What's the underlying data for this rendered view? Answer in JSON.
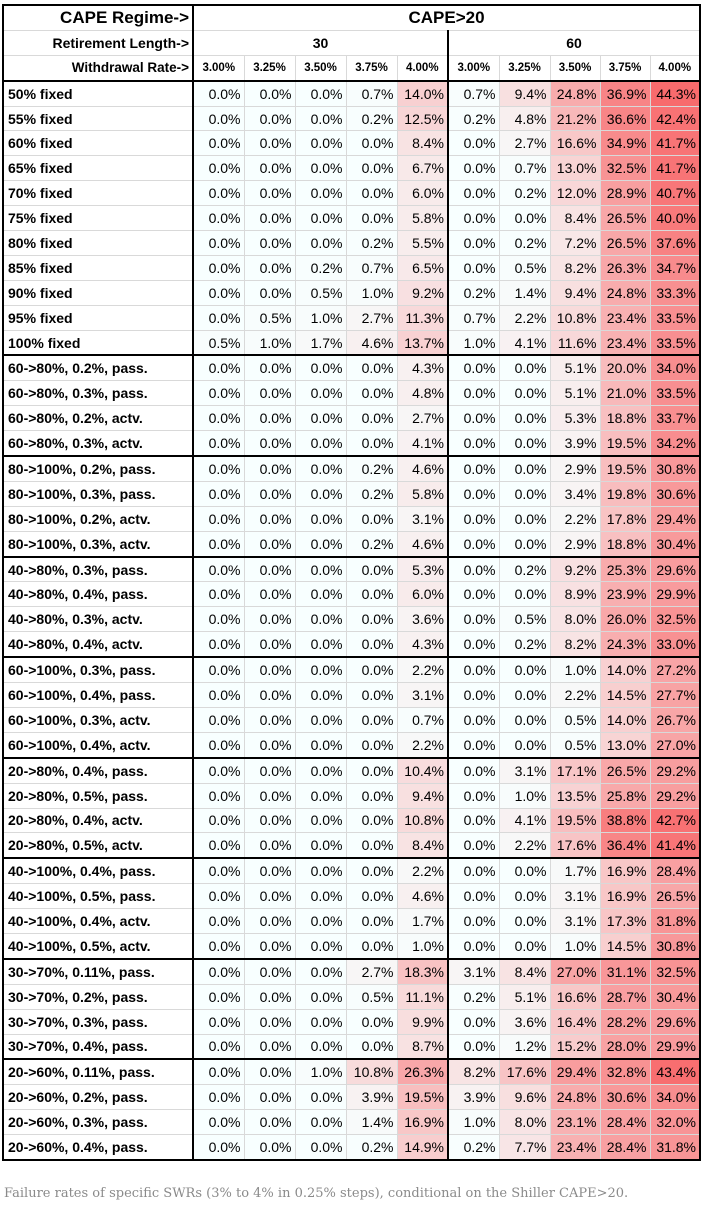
{
  "header": {
    "regime_label": "CAPE Regime->",
    "regime_value": "CAPE>20",
    "length_label": "Retirement Length->",
    "lengths": [
      "30",
      "60"
    ],
    "rate_label": "Withdrawal Rate->",
    "rates": [
      "3.00%",
      "3.25%",
      "3.50%",
      "3.75%",
      "4.00%"
    ]
  },
  "groups": [
    {
      "rows": [
        {
          "label": "50% fixed",
          "values": [
            "0.0%",
            "0.0%",
            "0.0%",
            "0.7%",
            "14.0%",
            "0.7%",
            "9.4%",
            "24.8%",
            "36.9%",
            "44.3%"
          ]
        },
        {
          "label": "55% fixed",
          "values": [
            "0.0%",
            "0.0%",
            "0.0%",
            "0.2%",
            "12.5%",
            "0.2%",
            "4.8%",
            "21.2%",
            "36.6%",
            "42.4%"
          ]
        },
        {
          "label": "60% fixed",
          "values": [
            "0.0%",
            "0.0%",
            "0.0%",
            "0.0%",
            "8.4%",
            "0.0%",
            "2.7%",
            "16.6%",
            "34.9%",
            "41.7%"
          ]
        },
        {
          "label": "65% fixed",
          "values": [
            "0.0%",
            "0.0%",
            "0.0%",
            "0.0%",
            "6.7%",
            "0.0%",
            "0.7%",
            "13.0%",
            "32.5%",
            "41.7%"
          ]
        },
        {
          "label": "70% fixed",
          "values": [
            "0.0%",
            "0.0%",
            "0.0%",
            "0.0%",
            "6.0%",
            "0.0%",
            "0.2%",
            "12.0%",
            "28.9%",
            "40.7%"
          ]
        },
        {
          "label": "75% fixed",
          "values": [
            "0.0%",
            "0.0%",
            "0.0%",
            "0.0%",
            "5.8%",
            "0.0%",
            "0.0%",
            "8.4%",
            "26.5%",
            "40.0%"
          ]
        },
        {
          "label": "80% fixed",
          "values": [
            "0.0%",
            "0.0%",
            "0.0%",
            "0.2%",
            "5.5%",
            "0.0%",
            "0.2%",
            "7.2%",
            "26.5%",
            "37.6%"
          ]
        },
        {
          "label": "85% fixed",
          "values": [
            "0.0%",
            "0.0%",
            "0.2%",
            "0.7%",
            "6.5%",
            "0.0%",
            "0.5%",
            "8.2%",
            "26.3%",
            "34.7%"
          ]
        },
        {
          "label": "90% fixed",
          "values": [
            "0.0%",
            "0.0%",
            "0.5%",
            "1.0%",
            "9.2%",
            "0.2%",
            "1.4%",
            "9.4%",
            "24.8%",
            "33.3%"
          ]
        },
        {
          "label": "95% fixed",
          "values": [
            "0.0%",
            "0.5%",
            "1.0%",
            "2.7%",
            "11.3%",
            "0.7%",
            "2.2%",
            "10.8%",
            "23.4%",
            "33.5%"
          ]
        },
        {
          "label": "100% fixed",
          "values": [
            "0.5%",
            "1.0%",
            "1.7%",
            "4.6%",
            "13.7%",
            "1.0%",
            "4.1%",
            "11.6%",
            "23.4%",
            "33.5%"
          ]
        }
      ]
    },
    {
      "rows": [
        {
          "label": "60->80%, 0.2%, pass.",
          "values": [
            "0.0%",
            "0.0%",
            "0.0%",
            "0.0%",
            "4.3%",
            "0.0%",
            "0.0%",
            "5.1%",
            "20.0%",
            "34.0%"
          ]
        },
        {
          "label": "60->80%, 0.3%, pass.",
          "values": [
            "0.0%",
            "0.0%",
            "0.0%",
            "0.0%",
            "4.8%",
            "0.0%",
            "0.0%",
            "5.1%",
            "21.0%",
            "33.5%"
          ]
        },
        {
          "label": "60->80%, 0.2%, actv.",
          "values": [
            "0.0%",
            "0.0%",
            "0.0%",
            "0.0%",
            "2.7%",
            "0.0%",
            "0.0%",
            "5.3%",
            "18.8%",
            "33.7%"
          ]
        },
        {
          "label": "60->80%, 0.3%, actv.",
          "values": [
            "0.0%",
            "0.0%",
            "0.0%",
            "0.0%",
            "4.1%",
            "0.0%",
            "0.0%",
            "3.9%",
            "19.5%",
            "34.2%"
          ]
        }
      ]
    },
    {
      "rows": [
        {
          "label": "80->100%, 0.2%, pass.",
          "values": [
            "0.0%",
            "0.0%",
            "0.0%",
            "0.2%",
            "4.6%",
            "0.0%",
            "0.0%",
            "2.9%",
            "19.5%",
            "30.8%"
          ]
        },
        {
          "label": "80->100%, 0.3%, pass.",
          "values": [
            "0.0%",
            "0.0%",
            "0.0%",
            "0.2%",
            "5.8%",
            "0.0%",
            "0.0%",
            "3.4%",
            "19.8%",
            "30.6%"
          ]
        },
        {
          "label": "80->100%, 0.2%, actv.",
          "values": [
            "0.0%",
            "0.0%",
            "0.0%",
            "0.0%",
            "3.1%",
            "0.0%",
            "0.0%",
            "2.2%",
            "17.8%",
            "29.4%"
          ]
        },
        {
          "label": "80->100%, 0.3%, actv.",
          "values": [
            "0.0%",
            "0.0%",
            "0.0%",
            "0.2%",
            "4.6%",
            "0.0%",
            "0.0%",
            "2.9%",
            "18.8%",
            "30.4%"
          ]
        }
      ]
    },
    {
      "rows": [
        {
          "label": "40->80%, 0.3%, pass.",
          "values": [
            "0.0%",
            "0.0%",
            "0.0%",
            "0.0%",
            "5.3%",
            "0.0%",
            "0.2%",
            "9.2%",
            "25.3%",
            "29.6%"
          ]
        },
        {
          "label": "40->80%, 0.4%, pass.",
          "values": [
            "0.0%",
            "0.0%",
            "0.0%",
            "0.0%",
            "6.0%",
            "0.0%",
            "0.0%",
            "8.9%",
            "23.9%",
            "29.9%"
          ]
        },
        {
          "label": "40->80%, 0.3%, actv.",
          "values": [
            "0.0%",
            "0.0%",
            "0.0%",
            "0.0%",
            "3.6%",
            "0.0%",
            "0.5%",
            "8.0%",
            "26.0%",
            "32.5%"
          ]
        },
        {
          "label": "40->80%, 0.4%, actv.",
          "values": [
            "0.0%",
            "0.0%",
            "0.0%",
            "0.0%",
            "4.3%",
            "0.0%",
            "0.2%",
            "8.2%",
            "24.3%",
            "33.0%"
          ]
        }
      ]
    },
    {
      "rows": [
        {
          "label": "60->100%, 0.3%, pass.",
          "values": [
            "0.0%",
            "0.0%",
            "0.0%",
            "0.0%",
            "2.2%",
            "0.0%",
            "0.0%",
            "1.0%",
            "14.0%",
            "27.2%"
          ]
        },
        {
          "label": "60->100%, 0.4%, pass.",
          "values": [
            "0.0%",
            "0.0%",
            "0.0%",
            "0.0%",
            "3.1%",
            "0.0%",
            "0.0%",
            "2.2%",
            "14.5%",
            "27.7%"
          ]
        },
        {
          "label": "60->100%, 0.3%, actv.",
          "values": [
            "0.0%",
            "0.0%",
            "0.0%",
            "0.0%",
            "0.7%",
            "0.0%",
            "0.0%",
            "0.5%",
            "14.0%",
            "26.7%"
          ]
        },
        {
          "label": "60->100%, 0.4%, actv.",
          "values": [
            "0.0%",
            "0.0%",
            "0.0%",
            "0.0%",
            "2.2%",
            "0.0%",
            "0.0%",
            "0.5%",
            "13.0%",
            "27.0%"
          ]
        }
      ]
    },
    {
      "rows": [
        {
          "label": "20->80%, 0.4%, pass.",
          "values": [
            "0.0%",
            "0.0%",
            "0.0%",
            "0.0%",
            "10.4%",
            "0.0%",
            "3.1%",
            "17.1%",
            "26.5%",
            "29.2%"
          ]
        },
        {
          "label": "20->80%, 0.5%, pass.",
          "values": [
            "0.0%",
            "0.0%",
            "0.0%",
            "0.0%",
            "9.4%",
            "0.0%",
            "1.0%",
            "13.5%",
            "25.8%",
            "29.2%"
          ]
        },
        {
          "label": "20->80%, 0.4%, actv.",
          "values": [
            "0.0%",
            "0.0%",
            "0.0%",
            "0.0%",
            "10.8%",
            "0.0%",
            "4.1%",
            "19.5%",
            "38.8%",
            "42.7%"
          ]
        },
        {
          "label": "20->80%, 0.5%, actv.",
          "values": [
            "0.0%",
            "0.0%",
            "0.0%",
            "0.0%",
            "8.4%",
            "0.0%",
            "2.2%",
            "17.6%",
            "36.4%",
            "41.4%"
          ]
        }
      ]
    },
    {
      "rows": [
        {
          "label": "40->100%, 0.4%, pass.",
          "values": [
            "0.0%",
            "0.0%",
            "0.0%",
            "0.0%",
            "2.2%",
            "0.0%",
            "0.0%",
            "1.7%",
            "16.9%",
            "28.4%"
          ]
        },
        {
          "label": "40->100%, 0.5%, pass.",
          "values": [
            "0.0%",
            "0.0%",
            "0.0%",
            "0.0%",
            "4.6%",
            "0.0%",
            "0.0%",
            "3.1%",
            "16.9%",
            "26.5%"
          ]
        },
        {
          "label": "40->100%, 0.4%, actv.",
          "values": [
            "0.0%",
            "0.0%",
            "0.0%",
            "0.0%",
            "1.7%",
            "0.0%",
            "0.0%",
            "3.1%",
            "17.3%",
            "31.8%"
          ]
        },
        {
          "label": "40->100%, 0.5%, actv.",
          "values": [
            "0.0%",
            "0.0%",
            "0.0%",
            "0.0%",
            "1.0%",
            "0.0%",
            "0.0%",
            "1.0%",
            "14.5%",
            "30.8%"
          ]
        }
      ]
    },
    {
      "rows": [
        {
          "label": "30->70%, 0.11%, pass.",
          "values": [
            "0.0%",
            "0.0%",
            "0.0%",
            "2.7%",
            "18.3%",
            "3.1%",
            "8.4%",
            "27.0%",
            "31.1%",
            "32.5%"
          ]
        },
        {
          "label": "30->70%, 0.2%, pass.",
          "values": [
            "0.0%",
            "0.0%",
            "0.0%",
            "0.5%",
            "11.1%",
            "0.2%",
            "5.1%",
            "16.6%",
            "28.7%",
            "30.4%"
          ]
        },
        {
          "label": "30->70%, 0.3%, pass.",
          "values": [
            "0.0%",
            "0.0%",
            "0.0%",
            "0.0%",
            "9.9%",
            "0.0%",
            "3.6%",
            "16.4%",
            "28.2%",
            "29.6%"
          ]
        },
        {
          "label": "30->70%, 0.4%, pass.",
          "values": [
            "0.0%",
            "0.0%",
            "0.0%",
            "0.0%",
            "8.7%",
            "0.0%",
            "1.2%",
            "15.2%",
            "28.0%",
            "29.9%"
          ]
        }
      ]
    },
    {
      "rows": [
        {
          "label": "20->60%, 0.11%, pass.",
          "values": [
            "0.0%",
            "0.0%",
            "1.0%",
            "10.8%",
            "26.3%",
            "8.2%",
            "17.6%",
            "29.4%",
            "32.8%",
            "43.4%"
          ]
        },
        {
          "label": "20->60%, 0.2%, pass.",
          "values": [
            "0.0%",
            "0.0%",
            "0.0%",
            "3.9%",
            "19.5%",
            "3.9%",
            "9.6%",
            "24.8%",
            "30.6%",
            "34.0%"
          ]
        },
        {
          "label": "20->60%, 0.3%, pass.",
          "values": [
            "0.0%",
            "0.0%",
            "0.0%",
            "1.4%",
            "16.9%",
            "1.0%",
            "8.0%",
            "23.1%",
            "28.4%",
            "32.0%"
          ]
        },
        {
          "label": "20->60%, 0.4%, pass.",
          "values": [
            "0.0%",
            "0.0%",
            "0.0%",
            "0.2%",
            "14.9%",
            "0.2%",
            "7.7%",
            "23.4%",
            "28.4%",
            "31.8%"
          ]
        }
      ]
    }
  ],
  "caption": "Failure rates of specific SWRs (3% to 4% in 0.25% steps), conditional on the Shiller CAPE>20."
}
